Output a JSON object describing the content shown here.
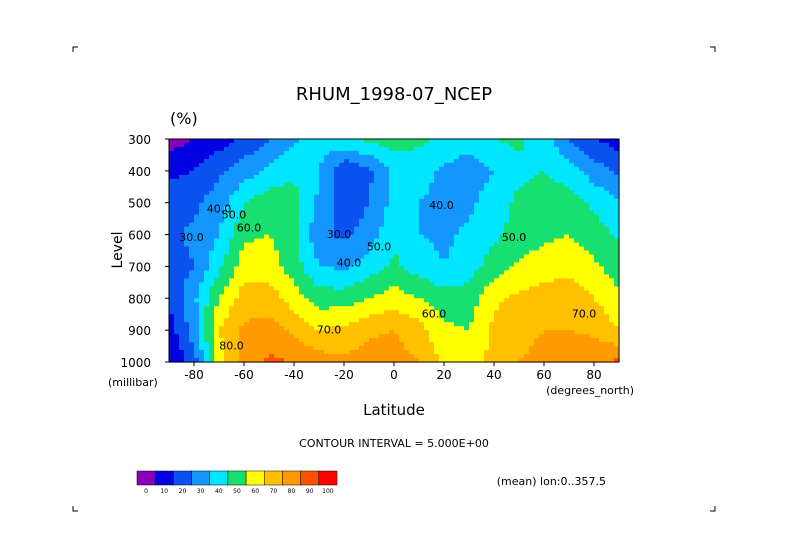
{
  "chart_data": {
    "type": "heatmap",
    "title": "RHUM_1998-07_NCEP",
    "units_label": "(%)",
    "ylabel": "Level",
    "ylabel_units": "(millibar)",
    "xlabel": "Latitude",
    "xlabel_units": "(degrees_north)",
    "x_ticks": [
      "-80",
      "-60",
      "-40",
      "-20",
      "0",
      "20",
      "40",
      "60",
      "80"
    ],
    "x_tick_values": [
      -80,
      -60,
      -40,
      -20,
      0,
      20,
      40,
      60,
      80
    ],
    "y_ticks": [
      "300",
      "400",
      "500",
      "600",
      "700",
      "800",
      "900",
      "1000"
    ],
    "y_tick_values": [
      300,
      400,
      500,
      600,
      700,
      800,
      900,
      1000
    ],
    "xlim": [
      -90,
      90
    ],
    "ylim": [
      1000,
      300
    ],
    "contour_interval_text": "CONTOUR INTERVAL = 5.000E+00",
    "mean_text": "(mean) lon:0..357.5",
    "contour_labels": [
      {
        "text": "30.0",
        "x": -81,
        "y": 620
      },
      {
        "text": "40.0",
        "x": -70,
        "y": 530
      },
      {
        "text": "50.0",
        "x": -64,
        "y": 550
      },
      {
        "text": "60.0",
        "x": -58,
        "y": 590
      },
      {
        "text": "30.0",
        "x": -22,
        "y": 610
      },
      {
        "text": "40.0",
        "x": -18,
        "y": 700
      },
      {
        "text": "50.0",
        "x": -6,
        "y": 650
      },
      {
        "text": "40.0",
        "x": 19,
        "y": 520
      },
      {
        "text": "50.0",
        "x": 48,
        "y": 620
      },
      {
        "text": "60.0",
        "x": 16,
        "y": 860
      },
      {
        "text": "70.0",
        "x": -26,
        "y": 910
      },
      {
        "text": "70.0",
        "x": 76,
        "y": 860
      },
      {
        "text": "80.0",
        "x": -65,
        "y": 960
      }
    ],
    "colorbar": {
      "ticks": [
        "0",
        "10",
        "20",
        "30",
        "40",
        "50",
        "60",
        "70",
        "80",
        "90",
        "100"
      ],
      "colors": [
        "#8a00b8",
        "#0000e0",
        "#0a52f0",
        "#1496ff",
        "#00e6ff",
        "#18e070",
        "#ffff00",
        "#ffc000",
        "#ff9a00",
        "#ff5000",
        "#ff0000"
      ]
    },
    "rh_grid_lat": [
      -90,
      -80,
      -70,
      -60,
      -50,
      -40,
      -30,
      -20,
      -10,
      0,
      10,
      20,
      30,
      40,
      50,
      60,
      70,
      80,
      90
    ],
    "rh_grid_levels": [
      300,
      400,
      500,
      600,
      700,
      800,
      900,
      1000
    ],
    "rh_values": [
      [
        5,
        10,
        15,
        22,
        30,
        38,
        45,
        50,
        52,
        55,
        52,
        48,
        45,
        50,
        52,
        45,
        30,
        20,
        15
      ],
      [
        18,
        20,
        28,
        35,
        42,
        48,
        40,
        20,
        28,
        42,
        45,
        38,
        34,
        40,
        48,
        50,
        45,
        35,
        28
      ],
      [
        24,
        28,
        35,
        50,
        56,
        55,
        38,
        22,
        30,
        43,
        40,
        36,
        38,
        45,
        52,
        55,
        55,
        48,
        40
      ],
      [
        28,
        32,
        40,
        58,
        60,
        52,
        32,
        28,
        35,
        48,
        40,
        38,
        42,
        48,
        54,
        58,
        60,
        55,
        48
      ],
      [
        25,
        30,
        48,
        65,
        65,
        55,
        40,
        38,
        45,
        52,
        45,
        40,
        45,
        55,
        62,
        65,
        68,
        62,
        55
      ],
      [
        22,
        38,
        60,
        75,
        75,
        65,
        55,
        55,
        60,
        65,
        60,
        55,
        55,
        68,
        72,
        75,
        75,
        70,
        62
      ],
      [
        15,
        35,
        70,
        82,
        84,
        78,
        70,
        72,
        78,
        80,
        74,
        62,
        60,
        72,
        78,
        80,
        80,
        78,
        70
      ],
      [
        10,
        25,
        65,
        85,
        92,
        90,
        85,
        82,
        85,
        84,
        80,
        68,
        62,
        75,
        80,
        82,
        85,
        88,
        92
      ]
    ]
  }
}
